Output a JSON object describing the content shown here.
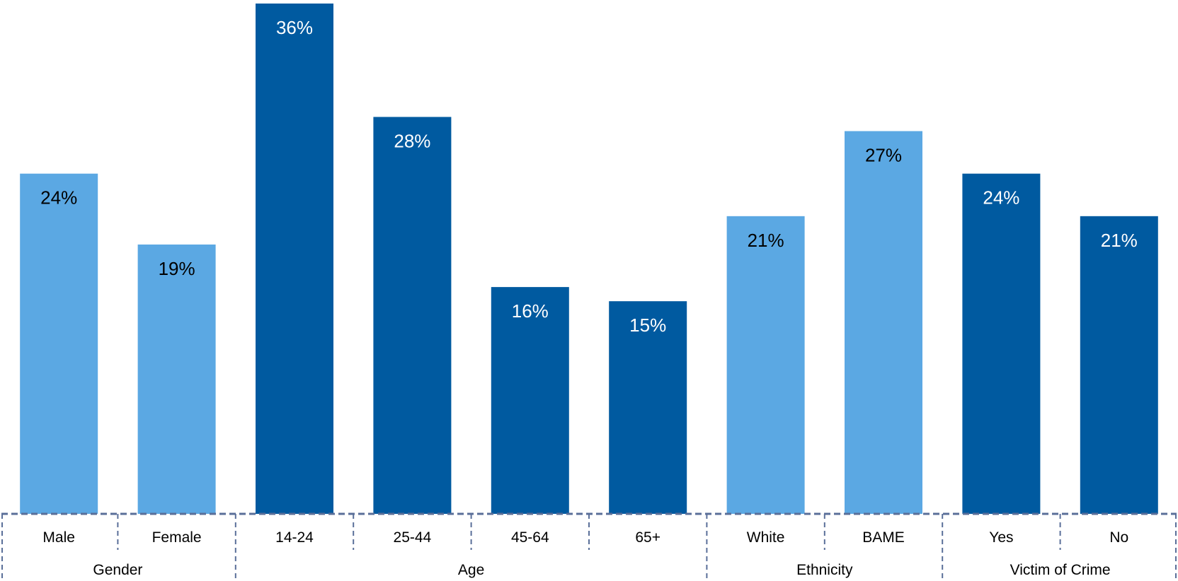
{
  "chart_data": {
    "type": "bar",
    "title": "",
    "xlabel": "",
    "ylabel": "",
    "ylim": [
      0,
      36
    ],
    "categories": [
      "Male",
      "Female",
      "14-24",
      "25-44",
      "45-64",
      "65+",
      "White",
      "BAME",
      "Yes",
      "No"
    ],
    "values": [
      24,
      19,
      36,
      28,
      16,
      15,
      21,
      27,
      24,
      21
    ],
    "value_labels": [
      "24%",
      "19%",
      "36%",
      "28%",
      "16%",
      "15%",
      "21%",
      "27%",
      "24%",
      "21%"
    ],
    "bar_colors": [
      "#5ba8e3",
      "#5ba8e3",
      "#005aa0",
      "#005aa0",
      "#005aa0",
      "#005aa0",
      "#5ba8e3",
      "#5ba8e3",
      "#005aa0",
      "#005aa0"
    ],
    "label_colors": [
      "#000000",
      "#000000",
      "#ffffff",
      "#ffffff",
      "#ffffff",
      "#ffffff",
      "#000000",
      "#000000",
      "#ffffff",
      "#ffffff"
    ],
    "groups": [
      {
        "label": "Gender",
        "start": 0,
        "count": 2
      },
      {
        "label": "Age",
        "start": 2,
        "count": 4
      },
      {
        "label": "Ethnicity",
        "start": 6,
        "count": 2
      },
      {
        "label": "Victim of Crime",
        "start": 8,
        "count": 2
      }
    ],
    "grid": false,
    "legend": "none"
  }
}
